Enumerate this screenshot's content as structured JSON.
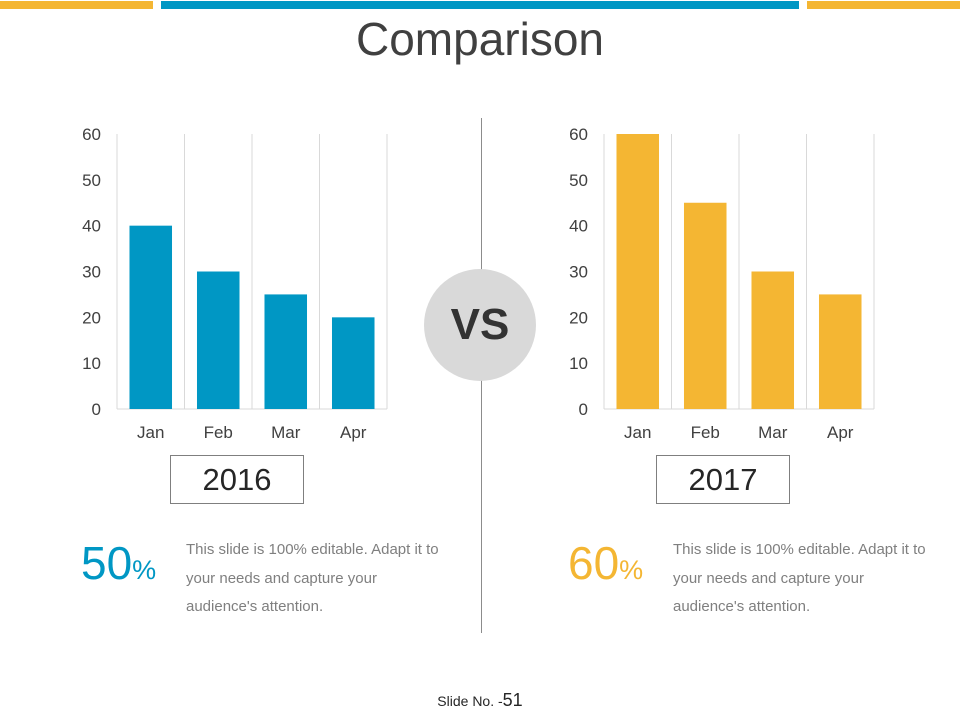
{
  "colors": {
    "blue": "#0097c4",
    "yellow": "#f4b633"
  },
  "title": "Comparison",
  "vs_label": "VS",
  "left": {
    "year": "2016",
    "percent": "50",
    "percent_symbol": "%",
    "description": "This slide is 100% editable. Adapt it to your needs and capture your audience's attention."
  },
  "right": {
    "year": "2017",
    "percent": "60",
    "percent_symbol": "%",
    "description": "This slide is 100% editable. Adapt it to your needs and capture your audience's attention."
  },
  "footer": {
    "label": "Slide No. -",
    "number": "51"
  },
  "chart_data": [
    {
      "type": "bar",
      "title": "2016",
      "categories": [
        "Jan",
        "Feb",
        "Mar",
        "Apr"
      ],
      "values": [
        40,
        30,
        25,
        20
      ],
      "ylim": [
        0,
        60
      ],
      "yticks": [
        0,
        10,
        20,
        30,
        40,
        50,
        60
      ],
      "color": "#0097c4",
      "xlabel": "",
      "ylabel": "",
      "grid": "vertical"
    },
    {
      "type": "bar",
      "title": "2017",
      "categories": [
        "Jan",
        "Feb",
        "Mar",
        "Apr"
      ],
      "values": [
        60,
        45,
        30,
        25
      ],
      "ylim": [
        0,
        60
      ],
      "yticks": [
        0,
        10,
        20,
        30,
        40,
        50,
        60
      ],
      "color": "#f4b633",
      "xlabel": "",
      "ylabel": "",
      "grid": "vertical"
    }
  ]
}
